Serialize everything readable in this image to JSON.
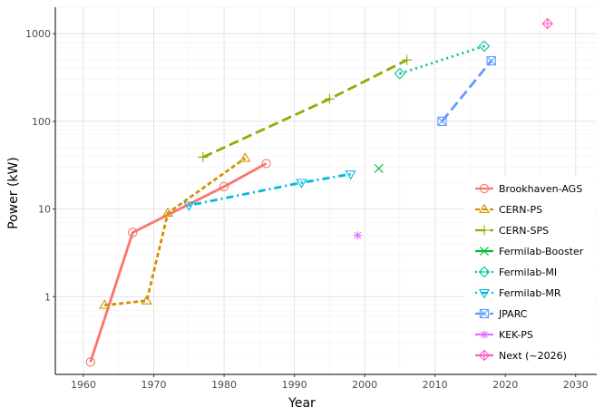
{
  "chart_data": {
    "type": "line",
    "title": "",
    "xlabel": "Year",
    "ylabel": "Power (kW)",
    "x_scale": "linear",
    "y_scale": "log",
    "xlim": [
      1956,
      2033
    ],
    "ylim": [
      0.13,
      2000
    ],
    "x_ticks": [
      1960,
      1970,
      1980,
      1990,
      2000,
      2010,
      2020,
      2030
    ],
    "y_ticks": [
      1,
      10,
      100,
      1000
    ],
    "grid": true,
    "legend_position": "right",
    "series": [
      {
        "name": "Brookhaven-AGS",
        "color": "#F8766D",
        "line": "solid",
        "marker": "circle",
        "x": [
          1961,
          1967,
          1980,
          1986
        ],
        "y": [
          0.18,
          5.4,
          18,
          33
        ]
      },
      {
        "name": "CERN-PS",
        "color": "#D39200",
        "line": "dashed",
        "marker": "triangle-up",
        "x": [
          1963,
          1969,
          1972,
          1983
        ],
        "y": [
          0.8,
          0.9,
          9,
          38
        ]
      },
      {
        "name": "CERN-SPS",
        "color": "#93AA00",
        "line": "longdash",
        "marker": "plus",
        "x": [
          1977,
          1995,
          2006
        ],
        "y": [
          39,
          180,
          500
        ]
      },
      {
        "name": "Fermilab-Booster",
        "color": "#00BA38",
        "line": "none",
        "marker": "cross",
        "x": [
          2002
        ],
        "y": [
          29
        ]
      },
      {
        "name": "Fermilab-MI",
        "color": "#00C19F",
        "line": "dotted",
        "marker": "diamond-dot",
        "x": [
          2005,
          2017
        ],
        "y": [
          350,
          720
        ]
      },
      {
        "name": "Fermilab-MR",
        "color": "#00B9E3",
        "line": "dotdash",
        "marker": "triangle-down",
        "x": [
          1975,
          1991,
          1998
        ],
        "y": [
          11,
          20,
          25
        ]
      },
      {
        "name": "JPARC",
        "color": "#619CFF",
        "line": "longdash",
        "marker": "square-cross",
        "x": [
          2011,
          2018
        ],
        "y": [
          100,
          490
        ]
      },
      {
        "name": "KEK-PS",
        "color": "#DB72FB",
        "line": "none",
        "marker": "asterisk",
        "x": [
          1999
        ],
        "y": [
          5
        ]
      },
      {
        "name": "Next (~2026)",
        "color": "#FF61C3",
        "line": "none",
        "marker": "diamond-plus",
        "x": [
          2026
        ],
        "y": [
          1300
        ]
      }
    ]
  }
}
